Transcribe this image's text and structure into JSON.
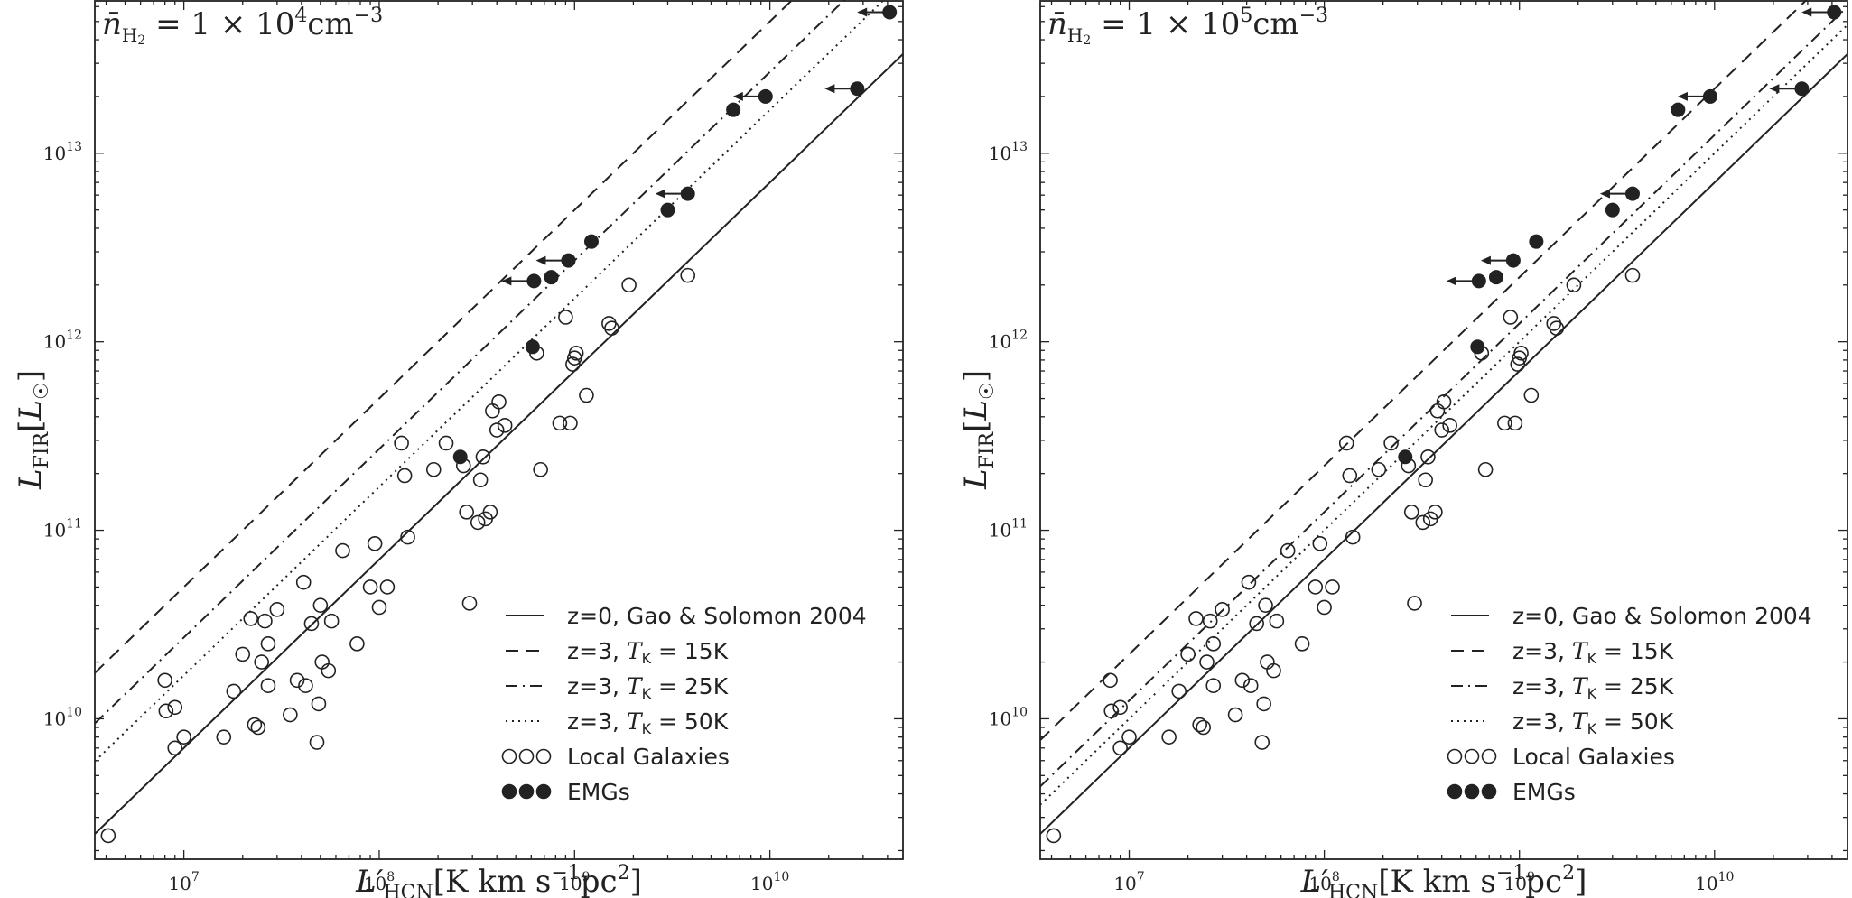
{
  "chart_data": [
    {
      "type": "scatter",
      "title": "n̄H2 = 1 × 10^4 cm^-3",
      "title_parts": {
        "lhs": "n̄",
        "lhs_sub": "H",
        "lhs_sub2": "2",
        "eq": " = 1 × 10",
        "exp": "4",
        "unit": "cm",
        "unit_exp": "−3"
      },
      "xlabel": "L′HCN[K km s−1pc2]",
      "ylabel": "LFIR[L☉]",
      "xscale": "log",
      "yscale": "log",
      "xlim": [
        3500000.0,
        48000000000.0
      ],
      "ylim": [
        1800000000.0,
        65000000000000.0
      ],
      "xticks": [
        {
          "value": 10000000.0,
          "exp": "7"
        },
        {
          "value": 100000000.0,
          "exp": "8"
        },
        {
          "value": 1000000000.0,
          "exp": "9"
        },
        {
          "value": 10000000000.0,
          "exp": "10"
        }
      ],
      "yticks": [
        {
          "value": 10000000000.0,
          "exp": "10"
        },
        {
          "value": 100000000000.0,
          "exp": "11"
        },
        {
          "value": 1000000000000.0,
          "exp": "12"
        },
        {
          "value": 10000000000000.0,
          "exp": "13"
        }
      ],
      "lines": [
        {
          "name": "z=0, Gao & Solomon 2004",
          "style": "solid",
          "slope": 1,
          "coeff": 700
        },
        {
          "name": "z=3, TK=15K",
          "style": "dashed",
          "slope": 1,
          "coeff": 5000
        },
        {
          "name": "z=3, TK=25K",
          "style": "dashdot",
          "slope": 1,
          "coeff": 2700
        },
        {
          "name": "z=3, TK=50K",
          "style": "dotted",
          "slope": 1,
          "coeff": 1700
        }
      ],
      "local_galaxies": [
        [
          4100000.0,
          2400000000.0
        ],
        [
          8000000.0,
          16000000000.0
        ],
        [
          8100000.0,
          11000000000.0
        ],
        [
          9000000.0,
          11500000000.0
        ],
        [
          9000000.0,
          7000000000.0
        ],
        [
          10000000.0,
          8000000000.0
        ],
        [
          16000000.0,
          8000000000.0
        ],
        [
          18000000.0,
          14000000000.0
        ],
        [
          20000000.0,
          22000000000.0
        ],
        [
          22000000.0,
          34000000000.0
        ],
        [
          23000000.0,
          9300000000.0
        ],
        [
          24000000.0,
          9000000000.0
        ],
        [
          25000000.0,
          20000000000.0
        ],
        [
          26000000.0,
          33000000000.0
        ],
        [
          27000000.0,
          25000000000.0
        ],
        [
          27000000.0,
          15000000000.0
        ],
        [
          30000000.0,
          38000000000.0
        ],
        [
          35000000.0,
          10500000000.0
        ],
        [
          38000000.0,
          16000000000.0
        ],
        [
          41000000.0,
          53000000000.0
        ],
        [
          42000000.0,
          15000000000.0
        ],
        [
          45000000.0,
          32000000000.0
        ],
        [
          48000000.0,
          7500000000.0
        ],
        [
          49000000.0,
          12000000000.0
        ],
        [
          50000000.0,
          40000000000.0
        ],
        [
          51000000.0,
          20000000000.0
        ],
        [
          55000000.0,
          18000000000.0
        ],
        [
          57000000.0,
          33000000000.0
        ],
        [
          65000000.0,
          78000000000.0
        ],
        [
          77000000.0,
          25000000000.0
        ],
        [
          90000000.0,
          50000000000.0
        ],
        [
          95000000.0,
          85000000000.0
        ],
        [
          100000000.0,
          39000000000.0
        ],
        [
          110000000.0,
          50000000000.0
        ],
        [
          130000000.0,
          290000000000.0
        ],
        [
          135000000.0,
          195000000000.0
        ],
        [
          140000000.0,
          92000000000.0
        ],
        [
          190000000.0,
          210000000000.0
        ],
        [
          220000000.0,
          290000000000.0
        ],
        [
          270000000.0,
          220000000000.0
        ],
        [
          280000000.0,
          125000000000.0
        ],
        [
          290000000.0,
          41000000000.0
        ],
        [
          320000000.0,
          110000000000.0
        ],
        [
          330000000.0,
          185000000000.0
        ],
        [
          340000000.0,
          245000000000.0
        ],
        [
          350000000.0,
          115000000000.0
        ],
        [
          370000000.0,
          125000000000.0
        ],
        [
          380000000.0,
          430000000000.0
        ],
        [
          400000000.0,
          340000000000.0
        ],
        [
          410000000.0,
          480000000000.0
        ],
        [
          440000000.0,
          360000000000.0
        ],
        [
          640000000.0,
          870000000000.0
        ],
        [
          670000000.0,
          210000000000.0
        ],
        [
          840000000.0,
          370000000000.0
        ],
        [
          900000000.0,
          1350000000000.0
        ],
        [
          950000000.0,
          370000000000.0
        ],
        [
          980000000.0,
          760000000000.0
        ],
        [
          1000000000.0,
          820000000000.0
        ],
        [
          1020000000.0,
          870000000000.0
        ],
        [
          1150000000.0,
          520000000000.0
        ],
        [
          1500000000.0,
          1250000000000.0
        ],
        [
          1550000000.0,
          1180000000000.0
        ],
        [
          1900000000.0,
          2000000000000.0
        ],
        [
          3800000000.0,
          2250000000000.0
        ]
      ],
      "emgs": [
        {
          "x": 260000000.0,
          "y": 245000000000.0,
          "upper_limit": false
        },
        {
          "x": 610000000.0,
          "y": 940000000000.0,
          "upper_limit": false
        },
        {
          "x": 620000000.0,
          "y": 2100000000000.0,
          "upper_limit": true
        },
        {
          "x": 760000000.0,
          "y": 2200000000000.0,
          "upper_limit": false
        },
        {
          "x": 930000000.0,
          "y": 2700000000000.0,
          "upper_limit": true
        },
        {
          "x": 1220000000.0,
          "y": 3400000000000.0,
          "upper_limit": false
        },
        {
          "x": 3000000000.0,
          "y": 5000000000000.0,
          "upper_limit": false
        },
        {
          "x": 3800000000.0,
          "y": 6100000000000.0,
          "upper_limit": true
        },
        {
          "x": 6500000000.0,
          "y": 17000000000000.0,
          "upper_limit": false
        },
        {
          "x": 9500000000.0,
          "y": 20000000000000.0,
          "upper_limit": true
        },
        {
          "x": 28000000000.0,
          "y": 22000000000000.0,
          "upper_limit": true
        },
        {
          "x": 41000000000.0,
          "y": 56000000000000.0,
          "upper_limit": true
        }
      ],
      "legend": {
        "placement": "lower-right",
        "entries": [
          {
            "kind": "line",
            "style": "solid",
            "prefix": "z=0, Gao & Solomon 2004",
            "tk": ""
          },
          {
            "kind": "line",
            "style": "dashed",
            "prefix": "z=3, ",
            "tk": "15K"
          },
          {
            "kind": "line",
            "style": "dashdot",
            "prefix": "z=3, ",
            "tk": "25K"
          },
          {
            "kind": "line",
            "style": "dotted",
            "prefix": "z=3, ",
            "tk": "50K"
          },
          {
            "kind": "open",
            "prefix": "Local Galaxies",
            "tk": ""
          },
          {
            "kind": "filled",
            "prefix": "EMGs",
            "tk": ""
          }
        ]
      }
    },
    {
      "type": "scatter",
      "title": "n̄H2 = 1 × 10^5 cm^-3",
      "title_parts": {
        "lhs": "n̄",
        "lhs_sub": "H",
        "lhs_sub2": "2",
        "eq": " = 1 × 10",
        "exp": "5",
        "unit": "cm",
        "unit_exp": "−3"
      },
      "xlabel": "L′HCN[K km s−1pc2]",
      "ylabel": "LFIR[L☉]",
      "xscale": "log",
      "yscale": "log",
      "xlim": [
        3500000.0,
        48000000000.0
      ],
      "ylim": [
        1800000000.0,
        65000000000000.0
      ],
      "xticks": [
        {
          "value": 10000000.0,
          "exp": "7"
        },
        {
          "value": 100000000.0,
          "exp": "8"
        },
        {
          "value": 1000000000.0,
          "exp": "9"
        },
        {
          "value": 10000000000.0,
          "exp": "10"
        }
      ],
      "yticks": [
        {
          "value": 10000000000.0,
          "exp": "10"
        },
        {
          "value": 100000000000.0,
          "exp": "11"
        },
        {
          "value": 1000000000000.0,
          "exp": "12"
        },
        {
          "value": 10000000000000.0,
          "exp": "13"
        }
      ],
      "lines": [
        {
          "name": "z=0, Gao & Solomon 2004",
          "style": "solid",
          "slope": 1,
          "coeff": 700
        },
        {
          "name": "z=3, TK=15K",
          "style": "dashed",
          "slope": 1,
          "coeff": 2200
        },
        {
          "name": "z=3, TK=25K",
          "style": "dashdot",
          "slope": 1,
          "coeff": 1250
        },
        {
          "name": "z=3, TK=50K",
          "style": "dotted",
          "slope": 1,
          "coeff": 1000
        }
      ],
      "local_galaxies": [
        [
          4100000.0,
          2400000000.0
        ],
        [
          8000000.0,
          16000000000.0
        ],
        [
          8100000.0,
          11000000000.0
        ],
        [
          9000000.0,
          11500000000.0
        ],
        [
          9000000.0,
          7000000000.0
        ],
        [
          10000000.0,
          8000000000.0
        ],
        [
          16000000.0,
          8000000000.0
        ],
        [
          18000000.0,
          14000000000.0
        ],
        [
          20000000.0,
          22000000000.0
        ],
        [
          22000000.0,
          34000000000.0
        ],
        [
          23000000.0,
          9300000000.0
        ],
        [
          24000000.0,
          9000000000.0
        ],
        [
          25000000.0,
          20000000000.0
        ],
        [
          26000000.0,
          33000000000.0
        ],
        [
          27000000.0,
          25000000000.0
        ],
        [
          27000000.0,
          15000000000.0
        ],
        [
          30000000.0,
          38000000000.0
        ],
        [
          35000000.0,
          10500000000.0
        ],
        [
          38000000.0,
          16000000000.0
        ],
        [
          41000000.0,
          53000000000.0
        ],
        [
          42000000.0,
          15000000000.0
        ],
        [
          45000000.0,
          32000000000.0
        ],
        [
          48000000.0,
          7500000000.0
        ],
        [
          49000000.0,
          12000000000.0
        ],
        [
          50000000.0,
          40000000000.0
        ],
        [
          51000000.0,
          20000000000.0
        ],
        [
          55000000.0,
          18000000000.0
        ],
        [
          57000000.0,
          33000000000.0
        ],
        [
          65000000.0,
          78000000000.0
        ],
        [
          77000000.0,
          25000000000.0
        ],
        [
          90000000.0,
          50000000000.0
        ],
        [
          95000000.0,
          85000000000.0
        ],
        [
          100000000.0,
          39000000000.0
        ],
        [
          110000000.0,
          50000000000.0
        ],
        [
          130000000.0,
          290000000000.0
        ],
        [
          135000000.0,
          195000000000.0
        ],
        [
          140000000.0,
          92000000000.0
        ],
        [
          190000000.0,
          210000000000.0
        ],
        [
          220000000.0,
          290000000000.0
        ],
        [
          270000000.0,
          220000000000.0
        ],
        [
          280000000.0,
          125000000000.0
        ],
        [
          290000000.0,
          41000000000.0
        ],
        [
          320000000.0,
          110000000000.0
        ],
        [
          330000000.0,
          185000000000.0
        ],
        [
          340000000.0,
          245000000000.0
        ],
        [
          350000000.0,
          115000000000.0
        ],
        [
          370000000.0,
          125000000000.0
        ],
        [
          380000000.0,
          430000000000.0
        ],
        [
          400000000.0,
          340000000000.0
        ],
        [
          410000000.0,
          480000000000.0
        ],
        [
          440000000.0,
          360000000000.0
        ],
        [
          640000000.0,
          870000000000.0
        ],
        [
          670000000.0,
          210000000000.0
        ],
        [
          840000000.0,
          370000000000.0
        ],
        [
          900000000.0,
          1350000000000.0
        ],
        [
          950000000.0,
          370000000000.0
        ],
        [
          980000000.0,
          760000000000.0
        ],
        [
          1000000000.0,
          820000000000.0
        ],
        [
          1020000000.0,
          870000000000.0
        ],
        [
          1150000000.0,
          520000000000.0
        ],
        [
          1500000000.0,
          1250000000000.0
        ],
        [
          1550000000.0,
          1180000000000.0
        ],
        [
          1900000000.0,
          2000000000000.0
        ],
        [
          3800000000.0,
          2250000000000.0
        ]
      ],
      "emgs": [
        {
          "x": 260000000.0,
          "y": 245000000000.0,
          "upper_limit": false
        },
        {
          "x": 610000000.0,
          "y": 940000000000.0,
          "upper_limit": false
        },
        {
          "x": 620000000.0,
          "y": 2100000000000.0,
          "upper_limit": true
        },
        {
          "x": 760000000.0,
          "y": 2200000000000.0,
          "upper_limit": false
        },
        {
          "x": 930000000.0,
          "y": 2700000000000.0,
          "upper_limit": true
        },
        {
          "x": 1220000000.0,
          "y": 3400000000000.0,
          "upper_limit": false
        },
        {
          "x": 3000000000.0,
          "y": 5000000000000.0,
          "upper_limit": false
        },
        {
          "x": 3800000000.0,
          "y": 6100000000000.0,
          "upper_limit": true
        },
        {
          "x": 6500000000.0,
          "y": 17000000000000.0,
          "upper_limit": false
        },
        {
          "x": 9500000000.0,
          "y": 20000000000000.0,
          "upper_limit": true
        },
        {
          "x": 28000000000.0,
          "y": 22000000000000.0,
          "upper_limit": true
        },
        {
          "x": 41000000000.0,
          "y": 56000000000000.0,
          "upper_limit": true
        }
      ],
      "legend": {
        "placement": "lower-right",
        "entries": [
          {
            "kind": "line",
            "style": "solid",
            "prefix": "z=0, Gao & Solomon 2004",
            "tk": ""
          },
          {
            "kind": "line",
            "style": "dashed",
            "prefix": "z=3, ",
            "tk": "15K"
          },
          {
            "kind": "line",
            "style": "dashdot",
            "prefix": "z=3, ",
            "tk": "25K"
          },
          {
            "kind": "line",
            "style": "dotted",
            "prefix": "z=3, ",
            "tk": "50K"
          },
          {
            "kind": "open",
            "prefix": "Local Galaxies",
            "tk": ""
          },
          {
            "kind": "filled",
            "prefix": "EMGs",
            "tk": ""
          }
        ]
      }
    }
  ]
}
